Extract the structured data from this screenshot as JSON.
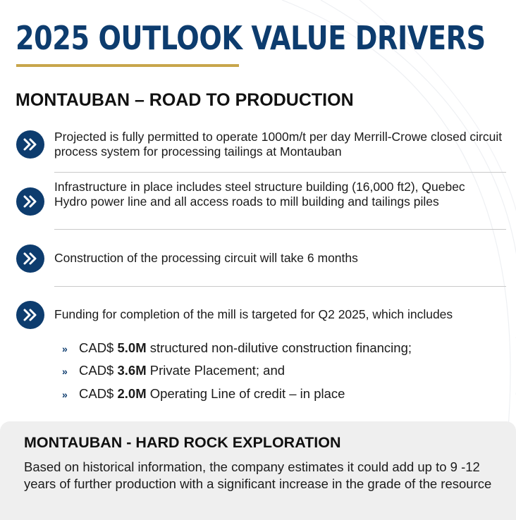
{
  "title": "2025 OUTLOOK VALUE DRIVERS",
  "colors": {
    "navy": "#0d3c6e",
    "gold": "#c8a64b",
    "panel": "#efefef"
  },
  "section": {
    "heading": "MONTAUBAN – ROAD TO PRODUCTION",
    "bullet_icon": "double-chevron-right-icon",
    "bullets": [
      {
        "text": "Projected is fully permitted to operate 1000m/t per day Merrill-Crowe closed circuit process system for processing tailings at Montauban"
      },
      {
        "text": "Infrastructure in place includes steel structure building (16,000 ft2), Quebec Hydro power line and all access roads to mill building and tailings piles"
      },
      {
        "text": "Construction of the processing circuit will take 6 months"
      },
      {
        "text": "Funding for completion of the mill is targeted for Q2 2025, which includes"
      }
    ],
    "funding_items": [
      {
        "marker": "»",
        "prefix": "CAD$ ",
        "amount": "5.0M",
        "suffix": " structured non-dilutive construction financing;"
      },
      {
        "marker": "»",
        "prefix": "CAD$ ",
        "amount": "3.6M",
        "suffix": " Private Placement; and"
      },
      {
        "marker": "»",
        "prefix": "CAD$ ",
        "amount": "2.0M",
        "suffix": " Operating Line of credit – in place"
      }
    ]
  },
  "panel": {
    "heading": "MONTAUBAN - HARD ROCK EXPLORATION",
    "text": "Based on historical information, the company estimates it could add up to 9 -12 years of further production with a significant increase in the grade of the resource"
  }
}
